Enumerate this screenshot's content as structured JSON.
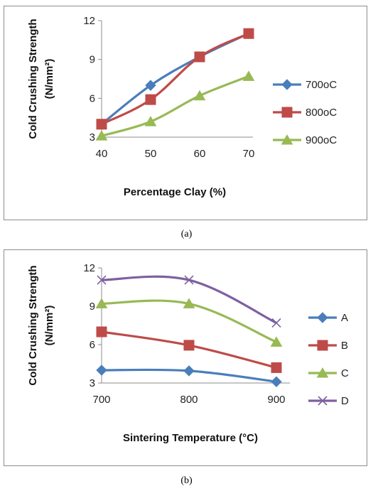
{
  "chart_data": [
    {
      "type": "line",
      "caption": "(a)",
      "xlabel": "Percentage Clay (%)",
      "ylabel_line1": "Cold Crushing Strength",
      "ylabel_line2": "(N/mm²)",
      "x": [
        40,
        50,
        60,
        70
      ],
      "xticks": [
        "40",
        "50",
        "60",
        "70"
      ],
      "yticks": [
        "3",
        "6",
        "9",
        "12"
      ],
      "ylim": [
        3,
        12
      ],
      "grid": false,
      "legend_position": "right",
      "series": [
        {
          "name": "700oC",
          "values": [
            4.0,
            7.0,
            9.2,
            11.0
          ],
          "color": "#4a7ebb",
          "marker": "diamond"
        },
        {
          "name": "800oC",
          "values": [
            4.0,
            5.9,
            9.2,
            11.0
          ],
          "color": "#be4b48",
          "marker": "square"
        },
        {
          "name": "900oC",
          "values": [
            3.1,
            4.2,
            6.2,
            7.7
          ],
          "color": "#98b954",
          "marker": "triangle"
        }
      ]
    },
    {
      "type": "line",
      "caption": "(b)",
      "xlabel": "Sintering Temperature (°C)",
      "ylabel_line1": "Cold Crushing Strength",
      "ylabel_line2": "(N/mm²)",
      "x": [
        700,
        800,
        900
      ],
      "xticks": [
        "700",
        "800",
        "900"
      ],
      "yticks": [
        "3",
        "6",
        "9",
        "12"
      ],
      "ylim": [
        3,
        12
      ],
      "grid": false,
      "legend_position": "right",
      "series": [
        {
          "name": "A",
          "values": [
            4.0,
            3.95,
            3.1
          ],
          "color": "#4a7ebb",
          "marker": "diamond"
        },
        {
          "name": "B",
          "values": [
            7.0,
            5.95,
            4.2
          ],
          "color": "#be4b48",
          "marker": "square"
        },
        {
          "name": "C",
          "values": [
            9.2,
            9.2,
            6.2
          ],
          "color": "#98b954",
          "marker": "triangle"
        },
        {
          "name": "D",
          "values": [
            11.05,
            11.05,
            7.7
          ],
          "color": "#7d60a0",
          "marker": "x"
        }
      ]
    }
  ]
}
